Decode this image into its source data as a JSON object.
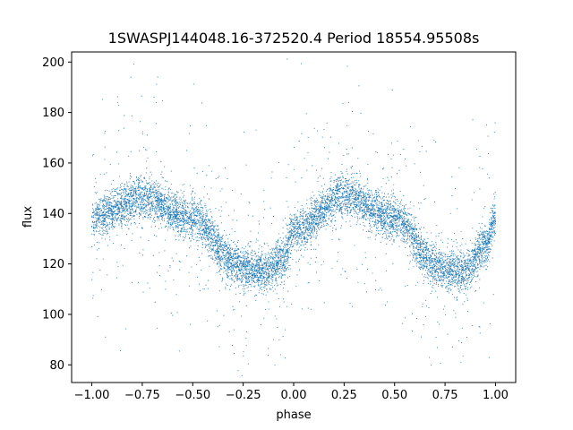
{
  "chart_data": {
    "type": "scatter",
    "title": "1SWASPJ144048.16-372520.4 Period 18554.95508s",
    "xlabel": "phase",
    "ylabel": "flux",
    "xlim": [
      -1.1,
      1.1
    ],
    "ylim": [
      73,
      204
    ],
    "xticks": [
      -1.0,
      -0.75,
      -0.5,
      -0.25,
      0.0,
      0.25,
      0.5,
      0.75,
      1.0
    ],
    "xtick_labels": [
      "−1.00",
      "−0.75",
      "−0.50",
      "−0.25",
      "0.00",
      "0.25",
      "0.50",
      "0.75",
      "1.00"
    ],
    "yticks": [
      80,
      100,
      120,
      140,
      160,
      180,
      200
    ],
    "ytick_labels": [
      "80",
      "100",
      "120",
      "140",
      "160",
      "180",
      "200"
    ],
    "grid": false,
    "marker_color": "#1f77b4",
    "series": [
      {
        "name": "",
        "description": "phase-folded light curve, points repeated over two cycles",
        "profile": {
          "phase": [
            -1.0,
            -0.75,
            -0.5,
            -0.3,
            -0.25,
            -0.15,
            -0.05,
            0.0,
            0.25,
            0.5,
            0.7,
            0.75,
            0.85,
            0.95,
            1.0
          ],
          "flux": [
            138,
            146,
            138,
            121,
            118,
            117,
            122,
            133,
            147,
            138,
            120,
            118,
            117,
            127,
            138
          ]
        }
      }
    ]
  }
}
